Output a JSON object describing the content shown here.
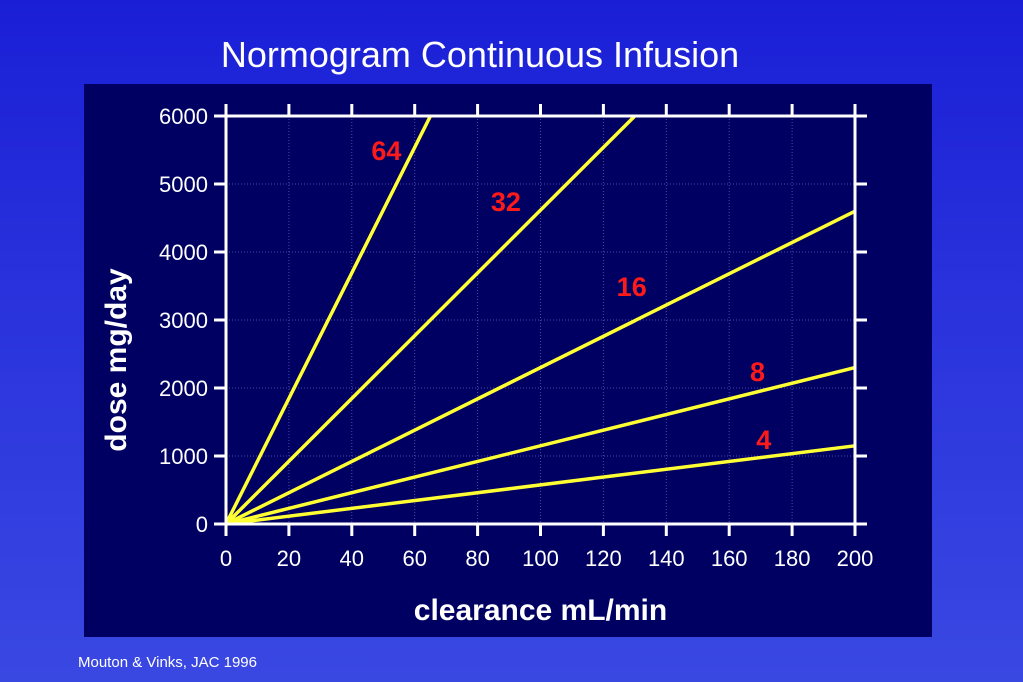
{
  "slide": {
    "title": "Normogram Continuous Infusion",
    "citation": "Mouton & Vinks, JAC 1996"
  },
  "colors": {
    "background": "#2a33dc",
    "panel": "#000063",
    "line": "#ffff33",
    "series_label": "#ff1a1a",
    "axis": "#ffffff"
  },
  "chart_data": {
    "type": "line",
    "title": "",
    "xlabel": "clearance mL/min",
    "ylabel": "dose mg/day",
    "xlim": [
      0,
      200
    ],
    "ylim": [
      0,
      6000
    ],
    "xticks": [
      0,
      20,
      40,
      60,
      80,
      100,
      120,
      140,
      160,
      180,
      200
    ],
    "yticks": [
      0,
      1000,
      2000,
      3000,
      4000,
      5000,
      6000
    ],
    "grid": true,
    "series": [
      {
        "name": "64",
        "x": [
          0,
          65
        ],
        "y": [
          0,
          6000
        ]
      },
      {
        "name": "32",
        "x": [
          0,
          130
        ],
        "y": [
          0,
          6000
        ]
      },
      {
        "name": "16",
        "x": [
          0,
          200
        ],
        "y": [
          0,
          4600
        ]
      },
      {
        "name": "8",
        "x": [
          0,
          200
        ],
        "y": [
          0,
          2300
        ]
      },
      {
        "name": "4",
        "x": [
          0,
          200
        ],
        "y": [
          0,
          1150
        ]
      }
    ],
    "annotations": [
      {
        "text": "64",
        "x": 51,
        "y": 5500
      },
      {
        "text": "32",
        "x": 89,
        "y": 4750
      },
      {
        "text": "16",
        "x": 129,
        "y": 3500
      },
      {
        "text": "8",
        "x": 169,
        "y": 2250
      },
      {
        "text": "4",
        "x": 171,
        "y": 1250
      }
    ]
  }
}
